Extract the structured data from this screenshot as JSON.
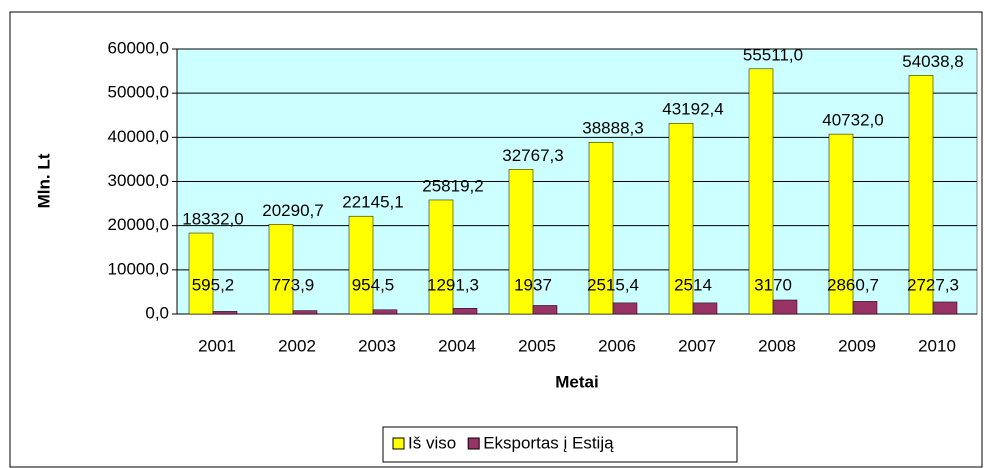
{
  "chart_data": {
    "type": "bar",
    "x_label": "Metai",
    "y_label": "Mln. Lt",
    "categories": [
      "2001",
      "2002",
      "2003",
      "2004",
      "2005",
      "2006",
      "2007",
      "2008",
      "2009",
      "2010"
    ],
    "series": [
      {
        "name": "Iš viso",
        "color": "#ffff00",
        "values": [
          18332.0,
          20290.7,
          22145.1,
          25819.2,
          32767.3,
          38888.3,
          43192.4,
          55511.0,
          40732.0,
          54038.8
        ],
        "value_labels": [
          "18332,0",
          "20290,7",
          "22145,1",
          "25819,2",
          "32767,3",
          "38888,3",
          "43192,4",
          "55511,0",
          "40732,0",
          "54038,8"
        ]
      },
      {
        "name": "Eksportas į Estiją",
        "color": "#993366",
        "values": [
          595.2,
          773.9,
          954.5,
          1291.3,
          1937,
          2515.4,
          2514,
          3170,
          2860.7,
          2727.3
        ],
        "value_labels": [
          "595,2",
          "773,9",
          "954,5",
          "1291,3",
          "1937",
          "2515,4",
          "2514",
          "3170",
          "2860,7",
          "2727,3"
        ]
      }
    ],
    "ylim": [
      0,
      60000
    ],
    "yticks": [
      {
        "value": 0,
        "label": "0,0"
      },
      {
        "value": 10000,
        "label": "10000,0"
      },
      {
        "value": 20000,
        "label": "20000,0"
      },
      {
        "value": 30000,
        "label": "30000,0"
      },
      {
        "value": 40000,
        "label": "40000,0"
      },
      {
        "value": 50000,
        "label": "50000,0"
      },
      {
        "value": 60000,
        "label": "60000,0"
      }
    ],
    "grid": true,
    "legend": "bottom"
  }
}
